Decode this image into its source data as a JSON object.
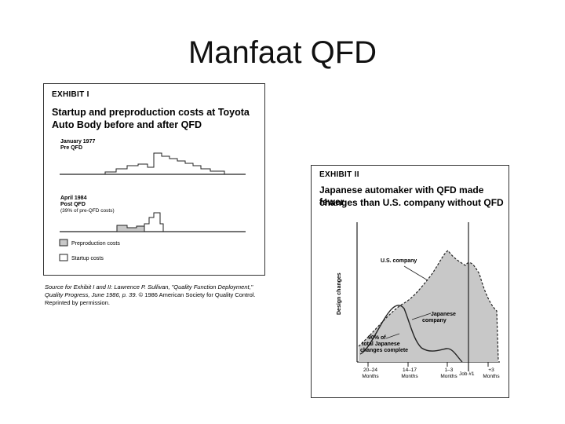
{
  "slide": {
    "title": "Manfaat QFD"
  },
  "exhibit1": {
    "label": "EXHIBIT I",
    "title_line1": "Startup and preproduction costs at Toyota",
    "title_line2": "Auto Body before and after QFD",
    "pre_date": "January 1977",
    "pre_label": "Pre QFD",
    "post_date": "April 1984",
    "post_label": "Post QFD",
    "post_note": "(39% of pre-QFD costs)",
    "legend_preproduction": "Preproduction costs",
    "legend_startup": "Startup costs",
    "source_italic": "Source for Exhibit I and II: Lawrence P. Sullivan, \"Quality Function Deployment,\" Quality Progress, June 1986, p. 39.",
    "source_normal": "© 1986 American Society for Quality Control. Reprinted by permission."
  },
  "exhibit2": {
    "label": "EXHIBIT II",
    "title_line1": "Japanese automaker with QFD made fewer",
    "title_line2": "changes than U.S. company without QFD",
    "ylabel": "Design changes",
    "us_label": "U.S. company",
    "jp_label_1": "Japanese",
    "jp_label_2": "company",
    "note_1": "90% of",
    "note_2": "total Japanese",
    "note_3": "changes complete",
    "job_label": "Job #1",
    "ticks": [
      {
        "top": "20–24",
        "bottom": "Months"
      },
      {
        "top": "14–17",
        "bottom": "Months"
      },
      {
        "top": "1–3",
        "bottom": "Months"
      },
      {
        "top": "+3",
        "bottom": "Months"
      }
    ]
  },
  "colors": {
    "shade": "#c8c8c8",
    "line": "#222222",
    "border": "#333333"
  }
}
